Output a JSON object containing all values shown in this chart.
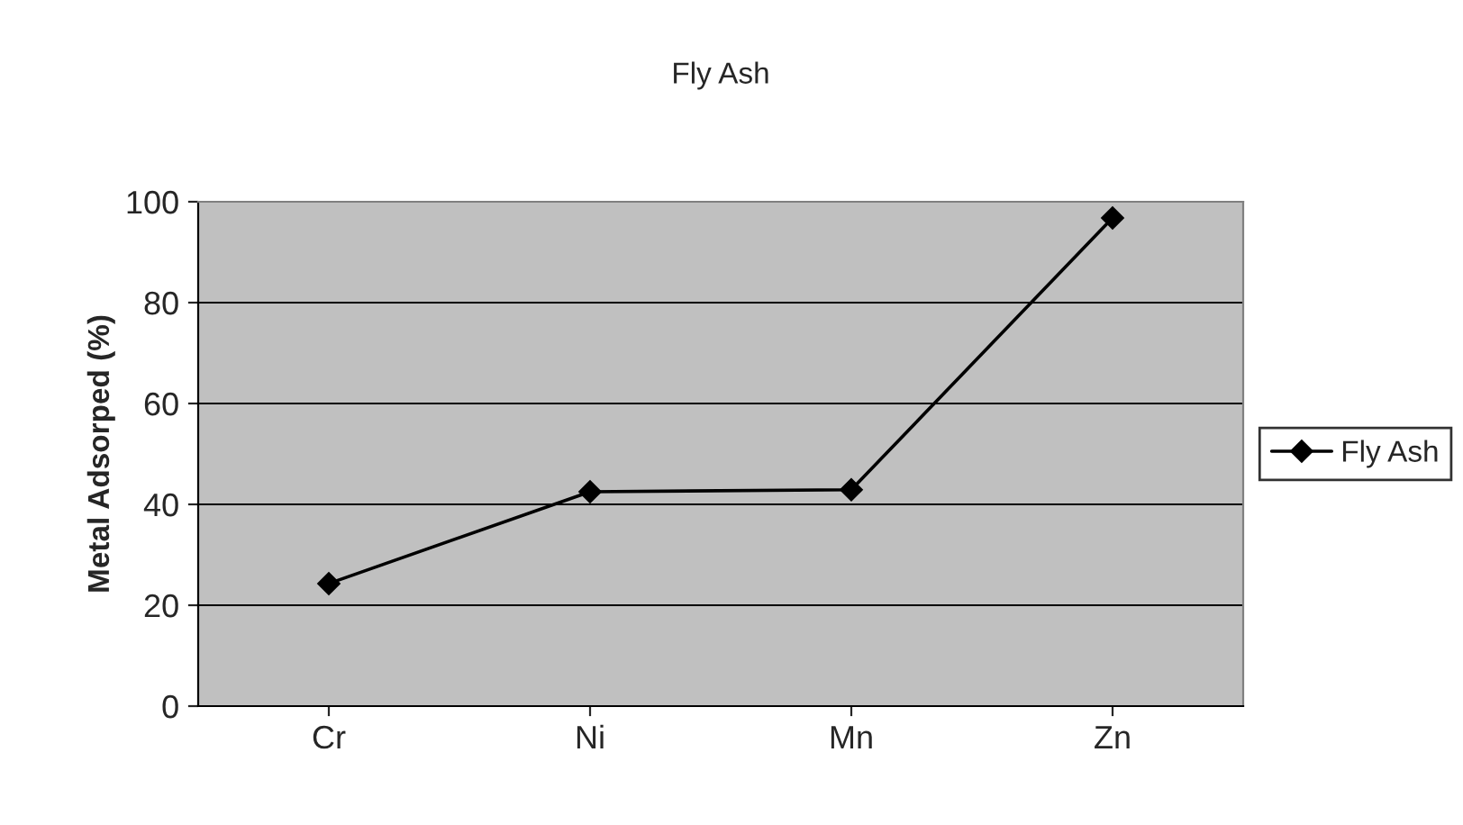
{
  "chart_data": {
    "type": "line",
    "title": "Fly Ash",
    "ylabel": "Metal Adsorped (%)",
    "categories": [
      "Cr",
      "Ni",
      "Mn",
      "Zn"
    ],
    "series": [
      {
        "name": "Fly Ash",
        "color": "#000000",
        "values": [
          24.3,
          42.5,
          42.9,
          96.8
        ]
      }
    ],
    "ylim": [
      0,
      100
    ],
    "yticks": [
      0,
      20,
      40,
      60,
      80,
      100
    ],
    "grid": "y",
    "legend": "right",
    "marker": "diamond",
    "line_style": "solid"
  }
}
